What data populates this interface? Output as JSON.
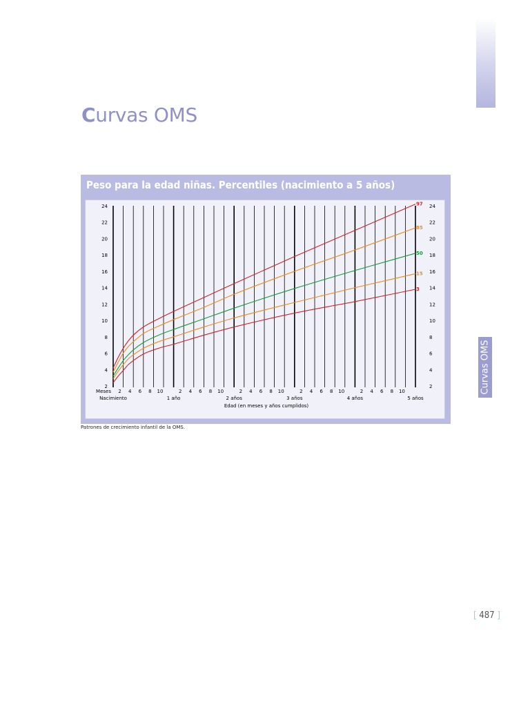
{
  "page": {
    "heading_first": "C",
    "heading_rest": "urvas OMS",
    "side_tab_label": "Curvas OMS",
    "caption": "Patrones de crecimiento infantil de la OMS.",
    "page_number_left": "[",
    "page_number": " 487 ",
    "page_number_right": "]",
    "colors": {
      "heading": "#8e90c8",
      "panel": "#b9bbe2",
      "side_tab": "#9b9dcf",
      "p97": "#d41f27",
      "p85": "#f08a1c",
      "p50": "#169a3c",
      "p15": "#f08a1c",
      "p3": "#d41f27"
    }
  },
  "chart_data": {
    "type": "line",
    "title": "Peso para la edad niñas. Percentiles (nacimiento a 5 años)",
    "xlabel": "Edad (en meses y años cumplidos)",
    "ylabel": "",
    "x_unit_label": "Meses",
    "xlim": [
      0,
      60
    ],
    "ylim": [
      2,
      24
    ],
    "y_ticks": [
      2,
      4,
      6,
      8,
      10,
      12,
      14,
      16,
      18,
      20,
      22,
      24
    ],
    "x_month_ticks": [
      "2",
      "4",
      "6",
      "8",
      "10"
    ],
    "x_year_labels": [
      {
        "month": 0,
        "label": "Nacimiento"
      },
      {
        "month": 12,
        "label": "1 año"
      },
      {
        "month": 24,
        "label": "2 años"
      },
      {
        "month": 36,
        "label": "3 años"
      },
      {
        "month": 48,
        "label": "4 años"
      },
      {
        "month": 60,
        "label": "5 años"
      }
    ],
    "grid": true,
    "x": [
      0,
      1,
      2,
      3,
      4,
      6,
      9,
      12,
      18,
      24,
      36,
      48,
      60
    ],
    "series": [
      {
        "name": "97",
        "color": "#d41f27",
        "values": [
          4.2,
          5.5,
          6.6,
          7.5,
          8.2,
          9.2,
          10.2,
          11.1,
          12.8,
          14.5,
          17.8,
          21.0,
          24.2
        ]
      },
      {
        "name": "85",
        "color": "#f08a1c",
        "values": [
          3.7,
          4.9,
          6.0,
          6.8,
          7.4,
          8.4,
          9.3,
          10.1,
          11.6,
          13.2,
          16.0,
          18.6,
          21.3
        ]
      },
      {
        "name": "50",
        "color": "#169a3c",
        "values": [
          3.2,
          4.2,
          5.1,
          5.8,
          6.4,
          7.3,
          8.2,
          8.9,
          10.2,
          11.5,
          13.9,
          16.1,
          18.2
        ]
      },
      {
        "name": "15",
        "color": "#f08a1c",
        "values": [
          2.9,
          3.8,
          4.6,
          5.3,
          5.8,
          6.6,
          7.4,
          8.0,
          9.2,
          10.3,
          12.2,
          14.0,
          15.7
        ]
      },
      {
        "name": "3",
        "color": "#d41f27",
        "values": [
          2.4,
          3.2,
          3.9,
          4.6,
          5.1,
          5.9,
          6.6,
          7.1,
          8.2,
          9.2,
          10.9,
          12.3,
          13.8
        ]
      }
    ]
  }
}
